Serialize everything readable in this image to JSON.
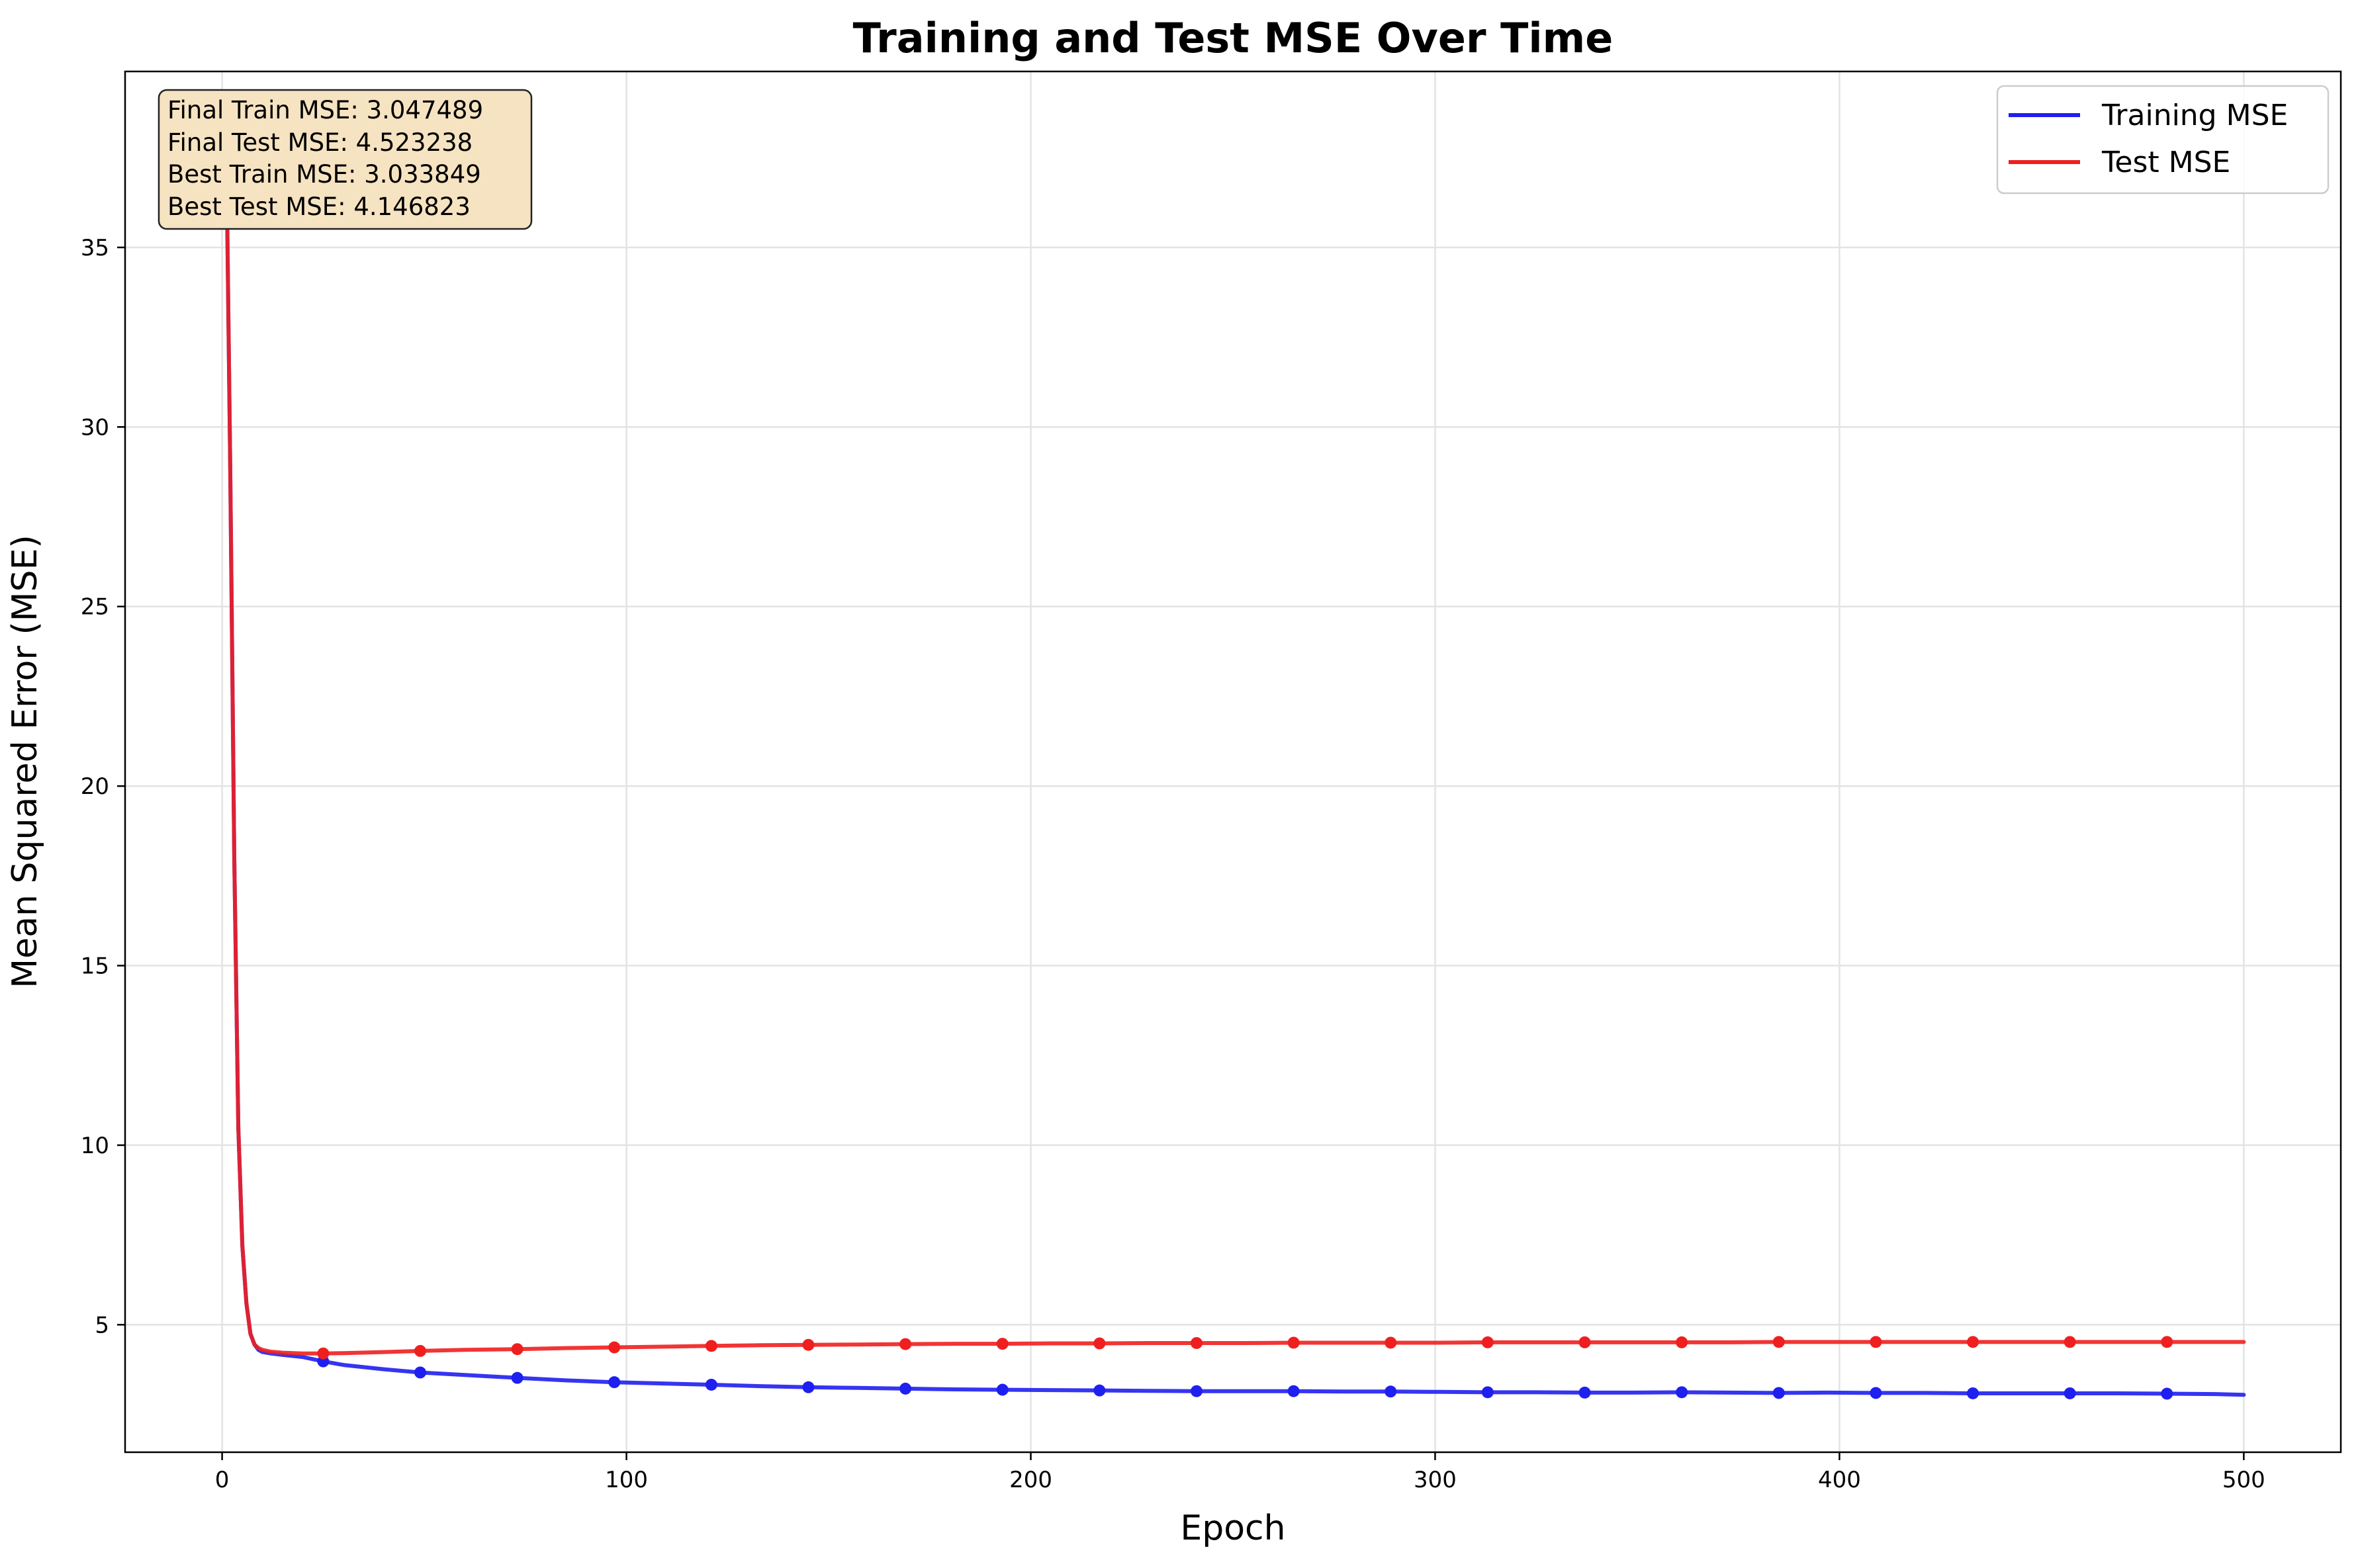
{
  "chart_data": {
    "type": "line",
    "title": "Training and Test MSE Over Time",
    "xlabel": "Epoch",
    "ylabel": "Mean Squared Error (MSE)",
    "xlim": [
      -24,
      524
    ],
    "ylim": [
      1.45,
      39.9
    ],
    "xticks": [
      0,
      100,
      200,
      300,
      400,
      500
    ],
    "yticks": [
      5,
      10,
      15,
      20,
      25,
      30,
      35
    ],
    "grid": true,
    "legend_position": "top-right",
    "series": [
      {
        "name": "Training MSE",
        "color": "#1f1fef",
        "x": [
          1,
          2,
          3,
          4,
          5,
          6,
          7,
          8,
          9,
          10,
          12,
          15,
          20,
          25,
          30,
          40,
          49,
          60,
          73,
          85,
          97,
          110,
          121,
          133,
          145,
          157,
          169,
          181,
          193,
          205,
          217,
          229,
          241,
          253,
          265,
          277,
          289,
          301,
          313,
          325,
          337,
          349,
          361,
          373,
          385,
          397,
          409,
          421,
          433,
          445,
          457,
          469,
          481,
          493,
          500
        ],
        "values": [
          38.2,
          29.0,
          18.0,
          10.5,
          7.2,
          5.6,
          4.75,
          4.45,
          4.3,
          4.24,
          4.2,
          4.16,
          4.1,
          3.98,
          3.88,
          3.76,
          3.67,
          3.6,
          3.52,
          3.45,
          3.4,
          3.36,
          3.33,
          3.29,
          3.26,
          3.24,
          3.22,
          3.2,
          3.19,
          3.18,
          3.17,
          3.16,
          3.15,
          3.15,
          3.15,
          3.14,
          3.14,
          3.13,
          3.12,
          3.12,
          3.11,
          3.11,
          3.12,
          3.11,
          3.1,
          3.11,
          3.1,
          3.1,
          3.09,
          3.09,
          3.09,
          3.09,
          3.08,
          3.07,
          3.05
        ]
      },
      {
        "name": "Test MSE",
        "color": "#ef1f1f",
        "x": [
          1,
          2,
          3,
          4,
          5,
          6,
          7,
          8,
          9,
          10,
          12,
          15,
          20,
          25,
          30,
          40,
          49,
          60,
          73,
          85,
          97,
          110,
          121,
          133,
          145,
          157,
          169,
          181,
          193,
          205,
          217,
          229,
          241,
          253,
          265,
          277,
          289,
          301,
          313,
          325,
          337,
          349,
          361,
          373,
          385,
          397,
          409,
          421,
          433,
          445,
          457,
          469,
          481,
          493,
          500
        ],
        "values": [
          38.2,
          29.0,
          18.0,
          10.5,
          7.2,
          5.6,
          4.75,
          4.45,
          4.35,
          4.3,
          4.25,
          4.22,
          4.2,
          4.2,
          4.21,
          4.24,
          4.27,
          4.3,
          4.32,
          4.35,
          4.37,
          4.39,
          4.41,
          4.43,
          4.44,
          4.45,
          4.46,
          4.47,
          4.47,
          4.48,
          4.48,
          4.49,
          4.49,
          4.49,
          4.5,
          4.5,
          4.5,
          4.5,
          4.51,
          4.51,
          4.51,
          4.51,
          4.51,
          4.51,
          4.52,
          4.52,
          4.52,
          4.52,
          4.52,
          4.52,
          4.52,
          4.52,
          4.52,
          4.52,
          4.52
        ]
      }
    ],
    "markers": {
      "training": {
        "x": [
          25,
          49,
          73,
          97,
          121,
          145,
          169,
          193,
          217,
          241,
          265,
          289,
          313,
          337,
          361,
          385,
          409,
          433,
          457,
          481
        ],
        "values": [
          3.98,
          3.67,
          3.52,
          3.4,
          3.33,
          3.26,
          3.22,
          3.19,
          3.17,
          3.15,
          3.15,
          3.14,
          3.12,
          3.11,
          3.12,
          3.1,
          3.1,
          3.09,
          3.09,
          3.08
        ]
      },
      "test": {
        "x": [
          25,
          49,
          73,
          97,
          121,
          145,
          169,
          193,
          217,
          241,
          265,
          289,
          313,
          337,
          361,
          385,
          409,
          433,
          457,
          481
        ],
        "values": [
          4.2,
          4.27,
          4.32,
          4.37,
          4.41,
          4.44,
          4.46,
          4.47,
          4.48,
          4.49,
          4.5,
          4.5,
          4.51,
          4.51,
          4.51,
          4.52,
          4.52,
          4.52,
          4.52,
          4.52
        ]
      }
    },
    "stats_box": [
      "Final Train MSE: 3.047489",
      "Final Test MSE: 4.523238",
      "Best Train MSE: 3.033849",
      "Best Test MSE: 4.146823"
    ],
    "stats_box_position": "top-left",
    "stats_box_color": "#f6e3c1"
  }
}
